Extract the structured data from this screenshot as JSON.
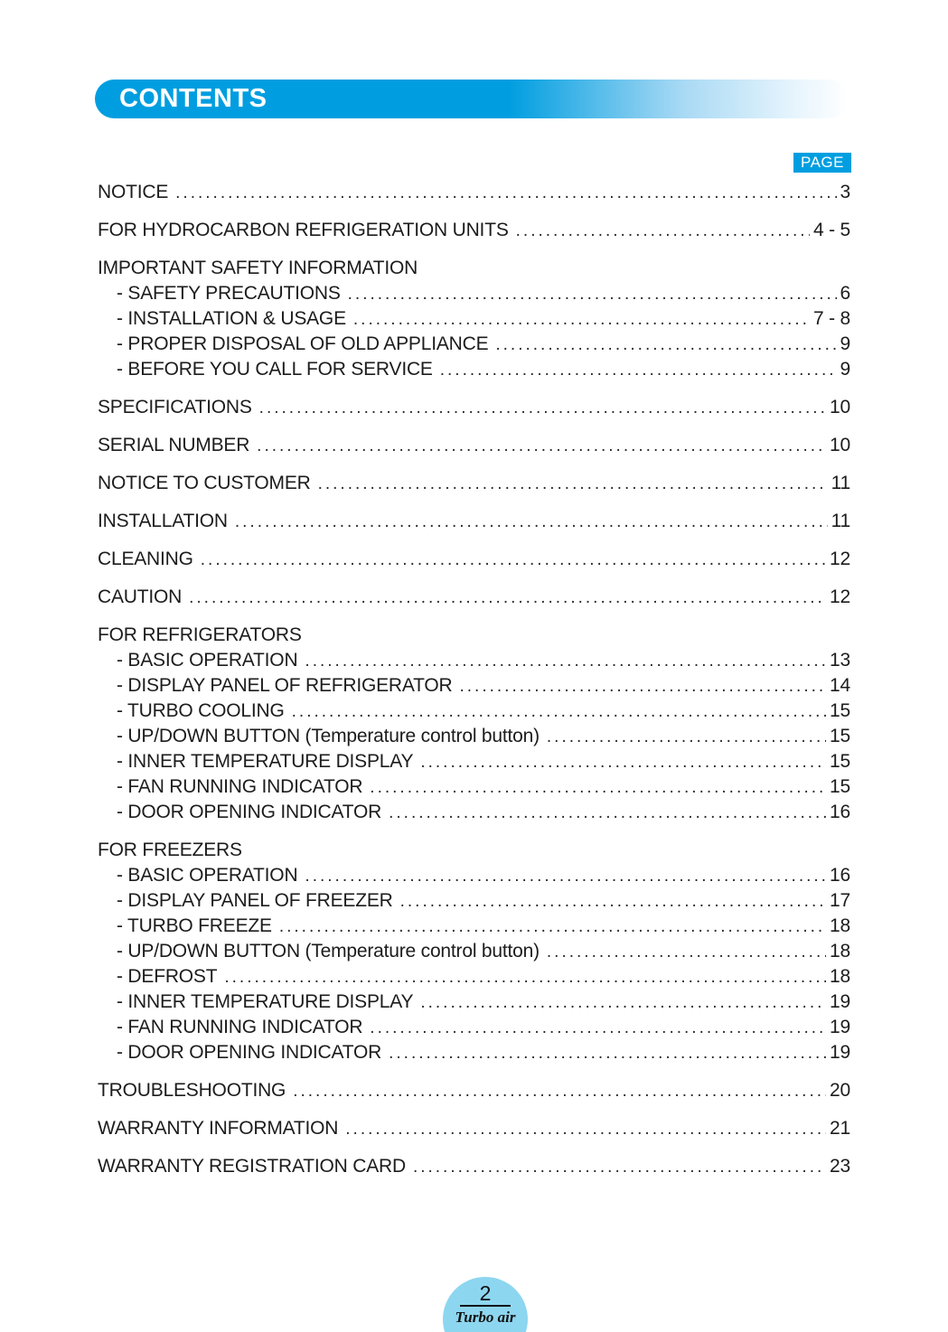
{
  "header": {
    "title": "CONTENTS"
  },
  "page_label": "PAGE",
  "colors": {
    "accent_blue": "#009EE0",
    "footer_circle_blue": "#8DD6F0",
    "text": "#1C1C1C"
  },
  "toc": {
    "entries": [
      {
        "label": "NOTICE",
        "page": "3",
        "sub": false
      },
      {
        "label": "FOR HYDROCARBON REFRIGERATION UNITS",
        "page": "4 - 5",
        "sub": false
      },
      {
        "label": "IMPORTANT SAFETY INFORMATION",
        "page": null,
        "sub": false
      },
      {
        "label": "- SAFETY PRECAUTIONS",
        "page": "6",
        "sub": true
      },
      {
        "label": "- INSTALLATION & USAGE",
        "page": "7 - 8",
        "sub": true
      },
      {
        "label": "- PROPER DISPOSAL OF OLD APPLIANCE",
        "page": "9",
        "sub": true
      },
      {
        "label": "- BEFORE YOU CALL FOR SERVICE",
        "page": "9",
        "sub": true
      },
      {
        "label": "SPECIFICATIONS",
        "page": "10",
        "sub": false
      },
      {
        "label": "SERIAL NUMBER",
        "page": "10",
        "sub": false
      },
      {
        "label": "NOTICE TO CUSTOMER",
        "page": "11",
        "sub": false
      },
      {
        "label": "INSTALLATION",
        "page": "11",
        "sub": false
      },
      {
        "label": "CLEANING",
        "page": "12",
        "sub": false
      },
      {
        "label": "CAUTION",
        "page": "12",
        "sub": false
      },
      {
        "label": "FOR REFRIGERATORS",
        "page": null,
        "sub": false
      },
      {
        "label": "- BASIC OPERATION",
        "page": "13",
        "sub": true
      },
      {
        "label": "- DISPLAY PANEL OF REFRIGERATOR",
        "page": "14",
        "sub": true
      },
      {
        "label": "- TURBO COOLING",
        "page": "15",
        "sub": true
      },
      {
        "label": "- UP/DOWN BUTTON (Temperature control button)",
        "page": "15",
        "sub": true
      },
      {
        "label": "- INNER TEMPERATURE DISPLAY",
        "page": "15",
        "sub": true
      },
      {
        "label": "- FAN RUNNING INDICATOR",
        "page": "15",
        "sub": true
      },
      {
        "label": "- DOOR OPENING INDICATOR",
        "page": "16",
        "sub": true
      },
      {
        "label": "FOR FREEZERS",
        "page": null,
        "sub": false
      },
      {
        "label": "- BASIC OPERATION",
        "page": "16",
        "sub": true
      },
      {
        "label": "- DISPLAY PANEL OF FREEZER",
        "page": "17",
        "sub": true
      },
      {
        "label": "- TURBO FREEZE",
        "page": "18",
        "sub": true
      },
      {
        "label": "- UP/DOWN BUTTON (Temperature control button)",
        "page": "18",
        "sub": true
      },
      {
        "label": "- DEFROST",
        "page": "18",
        "sub": true
      },
      {
        "label": "- INNER TEMPERATURE DISPLAY",
        "page": "19",
        "sub": true
      },
      {
        "label": "- FAN RUNNING INDICATOR",
        "page": "19",
        "sub": true
      },
      {
        "label": "- DOOR OPENING INDICATOR",
        "page": "19",
        "sub": true
      },
      {
        "label": "TROUBLESHOOTING",
        "page": "20",
        "sub": false
      },
      {
        "label": "WARRANTY INFORMATION",
        "page": "21",
        "sub": false
      },
      {
        "label": "WARRANTY REGISTRATION CARD",
        "page": "23",
        "sub": false
      }
    ]
  },
  "footer": {
    "page_number": "2",
    "brand": "Turbo air"
  }
}
